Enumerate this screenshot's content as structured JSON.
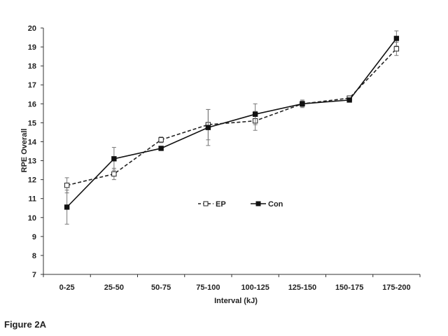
{
  "figure_caption": "Figure 2A",
  "chart_data": {
    "type": "line",
    "title": "",
    "xlabel": "Interval  (kJ)",
    "ylabel": "RPE Overall",
    "ylim": [
      7,
      20
    ],
    "yticks": [
      7,
      8,
      9,
      10,
      11,
      12,
      13,
      14,
      15,
      16,
      17,
      18,
      19,
      20
    ],
    "categories": [
      "0-25",
      "25-50",
      "50-75",
      "75-100",
      "100-125",
      "125-150",
      "150-175",
      "175-200"
    ],
    "grid": false,
    "legend_position": "center",
    "series": [
      {
        "name": "EP",
        "line_style": "dashed",
        "marker": "open-square",
        "color": "#222222",
        "values": [
          11.7,
          12.3,
          14.1,
          14.9,
          15.1,
          16.0,
          16.3,
          18.9
        ],
        "error": [
          0.4,
          0.3,
          0.15,
          0.8,
          0.5,
          0.15,
          0.1,
          0.35
        ]
      },
      {
        "name": "Con",
        "line_style": "solid",
        "marker": "filled-square",
        "color": "#111111",
        "values": [
          10.55,
          13.1,
          13.65,
          14.75,
          15.45,
          16.0,
          16.2,
          19.45
        ],
        "error": [
          0.9,
          0.6,
          0.1,
          0.95,
          0.55,
          0.2,
          0.1,
          0.4
        ]
      }
    ]
  }
}
